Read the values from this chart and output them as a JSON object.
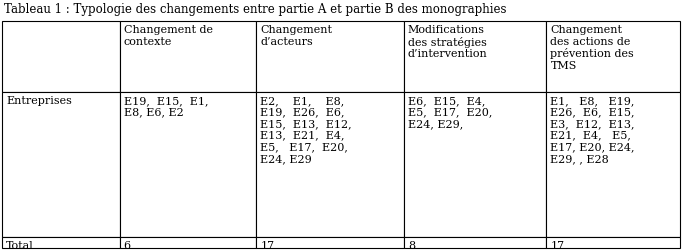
{
  "title": "Tableau 1 : Typologie des changements entre partie A et partie B des monographies",
  "col_headers": [
    "Changement de\ncontexte",
    "Changement\nd’acteurs",
    "Modifications\ndes stratégies\nd’intervention",
    "Changement\ndes actions de\nprévention des\nTMS"
  ],
  "cell_data": [
    [
      "E19,  E15,  E1,\nE8, E6, E2",
      "E2,    E1,    E8,\nE19,  E26,  E6,\nE15,  E13,  E12,\nE13,  E21,  E4,\nE5,   E17,  E20,\nE24, E29",
      "E6,  E15,  E4,\nE5,  E17,  E20,\nE24, E29,",
      "E1,   E8,   E19,\nE26,  E6,  E15,\nE3,  E12,  E13,\nE21,  E4,   E5,\nE17, E20, E24,\nE29, , E28"
    ],
    [
      "6",
      "17",
      "8",
      "17"
    ]
  ],
  "row_labels": [
    "Entreprises",
    "Total"
  ],
  "bg_color": "#ffffff",
  "border_color": "#000000",
  "title_fontsize": 8.5,
  "header_fontsize": 8.0,
  "cell_fontsize": 8.0,
  "figsize": [
    6.82,
    2.53
  ],
  "dpi": 100
}
